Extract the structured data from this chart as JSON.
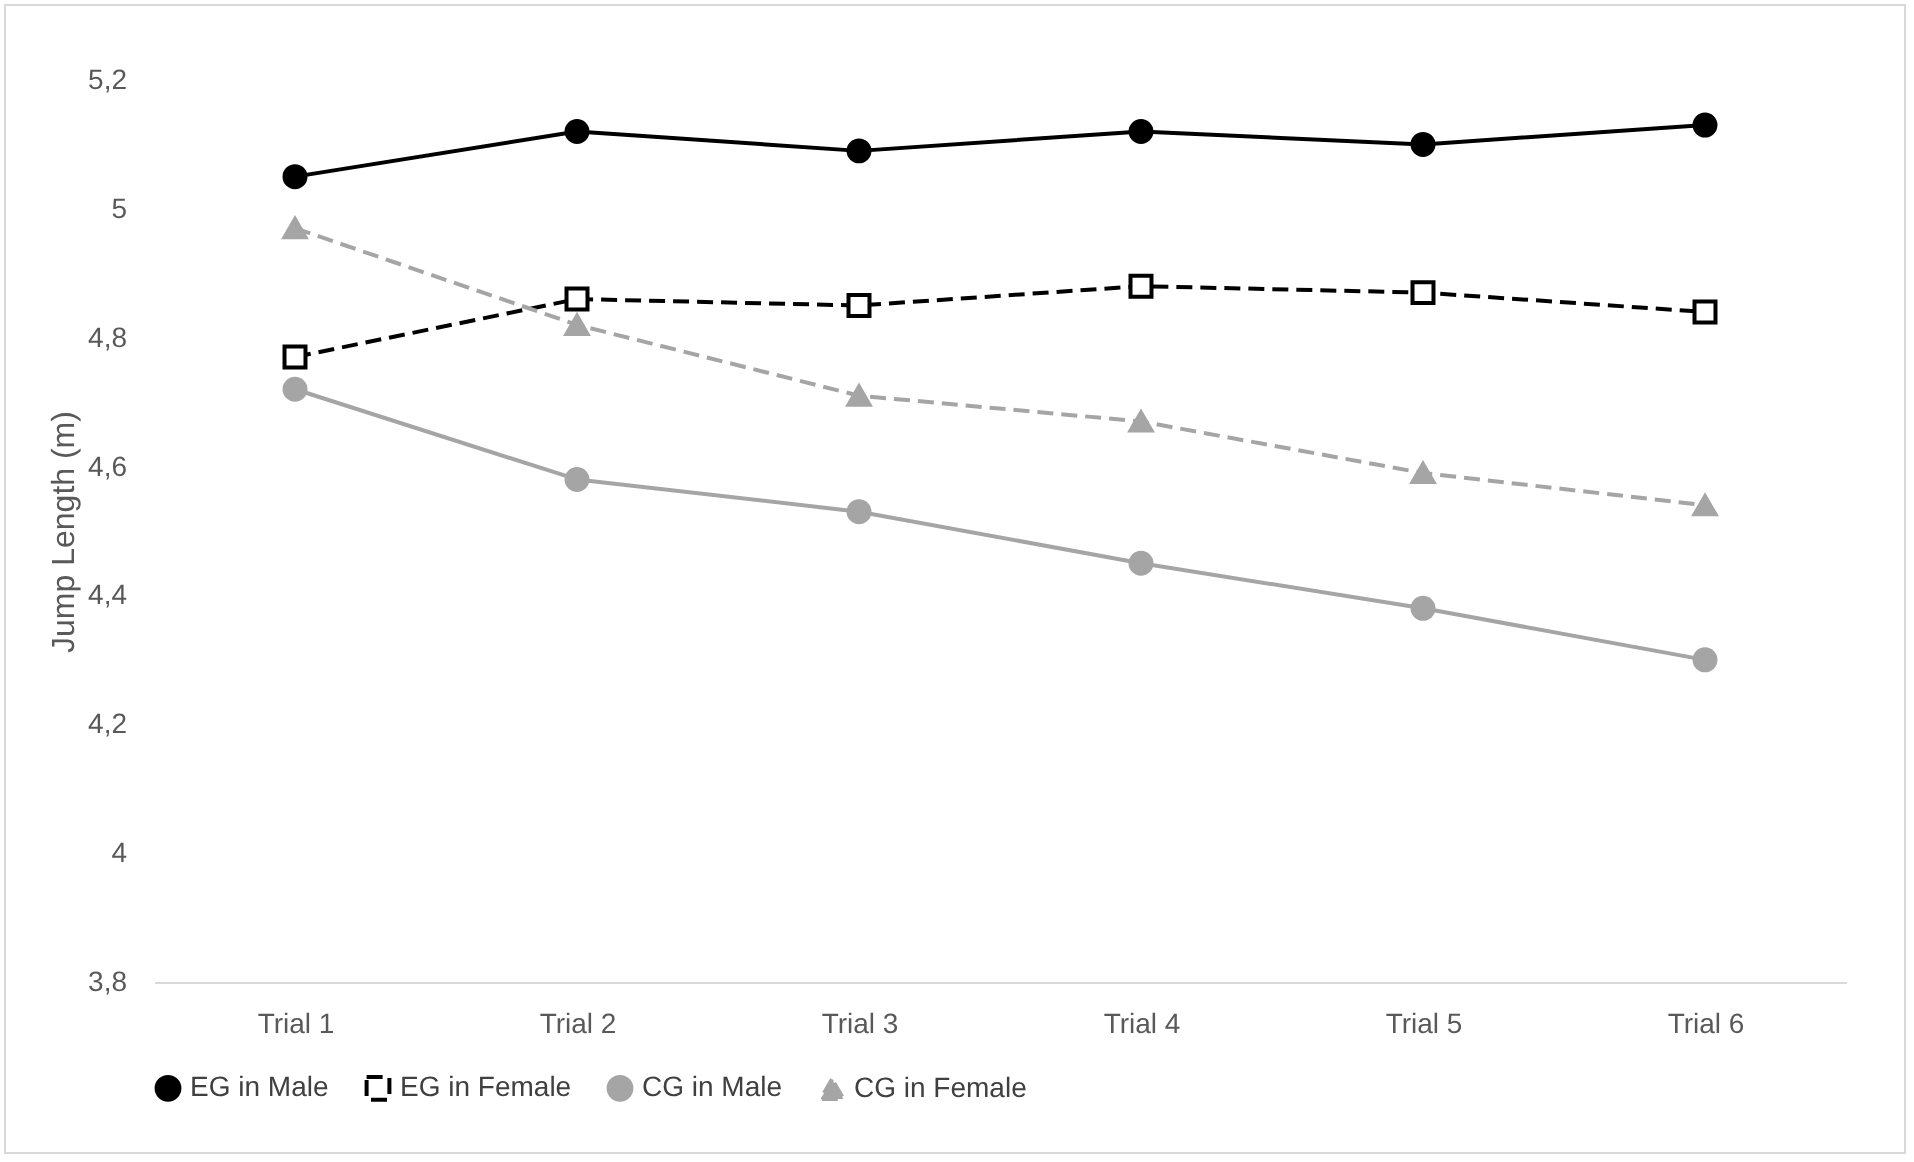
{
  "chart_data": {
    "type": "line",
    "ylabel": "Jump Length (m)",
    "categories": [
      "Trial 1",
      "Trial 2",
      "Trial 3",
      "Trial 4",
      "Trial 5",
      "Trial 6"
    ],
    "series": [
      {
        "name": "EG in Male",
        "color": "#000000",
        "marker": "circle",
        "line_style": "solid",
        "values": [
          5.05,
          5.12,
          5.09,
          5.12,
          5.1,
          5.13
        ]
      },
      {
        "name": "EG in Female",
        "color": "#000000",
        "marker": "square",
        "line_style": "dashed",
        "values": [
          4.77,
          4.86,
          4.85,
          4.88,
          4.87,
          4.84
        ]
      },
      {
        "name": "CG in Male",
        "color": "#a5a5a5",
        "marker": "circle",
        "line_style": "solid",
        "values": [
          4.72,
          4.58,
          4.53,
          4.45,
          4.38,
          4.3
        ]
      },
      {
        "name": "CG in Female",
        "color": "#a5a5a5",
        "marker": "triangle",
        "line_style": "dashed",
        "values": [
          4.97,
          4.82,
          4.71,
          4.67,
          4.59,
          4.54
        ]
      }
    ],
    "ylim": [
      3.8,
      5.2
    ],
    "yticks": [
      {
        "value": 3.8,
        "label": "3,8"
      },
      {
        "value": 4,
        "label": "4"
      },
      {
        "value": 4.2,
        "label": "4,2"
      },
      {
        "value": 4.4,
        "label": "4,4"
      },
      {
        "value": 4.6,
        "label": "4,6"
      },
      {
        "value": 4.8,
        "label": "4,8"
      },
      {
        "value": 5,
        "label": "5"
      },
      {
        "value": 5.2,
        "label": "5,2"
      }
    ],
    "grid": false,
    "legend": "bottom"
  }
}
